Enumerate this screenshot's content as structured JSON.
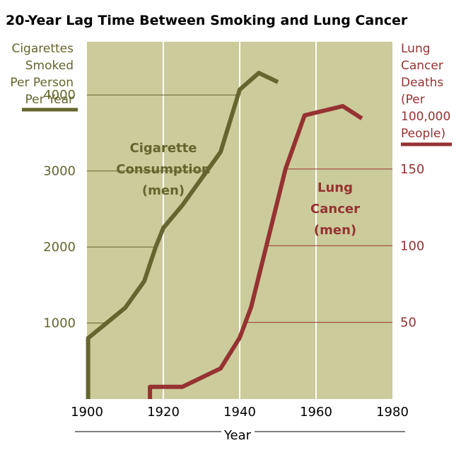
{
  "colors": {
    "plot_bg": "#cbcb9b",
    "cigarette": "#65652f",
    "cancer": "#963232",
    "grid": "#ffffff",
    "text": "#000000"
  },
  "chart_data": {
    "type": "line",
    "title": "20-Year Lag Time Between Smoking and Lung Cancer",
    "xlabel": "Year",
    "xlim": [
      1900,
      1980
    ],
    "x_ticks": [
      "1900",
      "1920",
      "1940",
      "1960",
      "1980"
    ],
    "y_left": {
      "label_lines": [
        "Cigarettes",
        "Smoked",
        "Per Person",
        "Per Year"
      ],
      "ticks": [
        "1000",
        "2000",
        "3000",
        "4000"
      ],
      "range": [
        0,
        4700
      ]
    },
    "y_right": {
      "label_lines": [
        "Lung",
        "Cancer",
        "Deaths",
        "(Per",
        "100,000",
        "People)"
      ],
      "ticks": [
        "50",
        "100",
        "150"
      ],
      "range": [
        0,
        233
      ]
    },
    "series": [
      {
        "axis": "left",
        "label_lines": [
          "Cigarette",
          "Consumption",
          "(men)"
        ],
        "points": [
          [
            1900.3,
            0
          ],
          [
            1900.3,
            100
          ],
          [
            1900.3,
            350
          ],
          [
            1900.3,
            800
          ],
          [
            1910,
            1200
          ],
          [
            1915,
            1550
          ],
          [
            1918,
            2000
          ],
          [
            1920,
            2250
          ],
          [
            1925,
            2550
          ],
          [
            1930,
            2900
          ],
          [
            1935,
            3250
          ],
          [
            1940,
            4070
          ],
          [
            1945,
            4290
          ],
          [
            1950,
            4170
          ]
        ]
      },
      {
        "axis": "right",
        "label_lines": [
          "Lung",
          "Cancer",
          "(men)"
        ],
        "points": [
          [
            1916.5,
            0
          ],
          [
            1916.5,
            8
          ],
          [
            1925,
            8
          ],
          [
            1935,
            20
          ],
          [
            1940,
            40
          ],
          [
            1943,
            60
          ],
          [
            1947,
            100
          ],
          [
            1952,
            150
          ],
          [
            1957,
            185
          ],
          [
            1967,
            191
          ],
          [
            1972,
            183
          ]
        ]
      }
    ]
  }
}
